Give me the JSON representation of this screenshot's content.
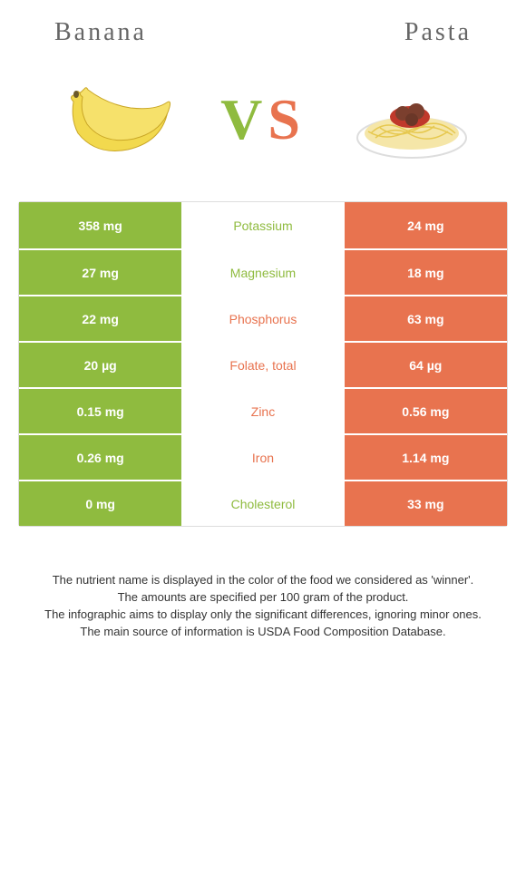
{
  "header": {
    "left_title": "Banana",
    "right_title": "Pasta"
  },
  "vs": {
    "v": "V",
    "s": "S"
  },
  "colors": {
    "banana_bg": "#8fbb3f",
    "pasta_bg": "#e8734f",
    "banana_text": "#8fbb3f",
    "pasta_text": "#e8734f"
  },
  "icons": {
    "banana": "banana-illustration",
    "pasta": "pasta-illustration"
  },
  "rows": [
    {
      "left": "358 mg",
      "label": "Potassium",
      "right": "24 mg",
      "winner": "banana"
    },
    {
      "left": "27 mg",
      "label": "Magnesium",
      "right": "18 mg",
      "winner": "banana"
    },
    {
      "left": "22 mg",
      "label": "Phosphorus",
      "right": "63 mg",
      "winner": "pasta"
    },
    {
      "left": "20 µg",
      "label": "Folate, total",
      "right": "64 µg",
      "winner": "pasta"
    },
    {
      "left": "0.15 mg",
      "label": "Zinc",
      "right": "0.56 mg",
      "winner": "pasta"
    },
    {
      "left": "0.26 mg",
      "label": "Iron",
      "right": "1.14 mg",
      "winner": "pasta"
    },
    {
      "left": "0 mg",
      "label": "Cholesterol",
      "right": "33 mg",
      "winner": "banana"
    }
  ],
  "footer": {
    "line1": "The nutrient name is displayed in the color of the food we considered as 'winner'.",
    "line2": "The amounts are specified per 100 gram of the product.",
    "line3": "The infographic aims to display only the significant differences, ignoring minor ones.",
    "line4": "The main source of information is USDA Food Composition Database."
  }
}
